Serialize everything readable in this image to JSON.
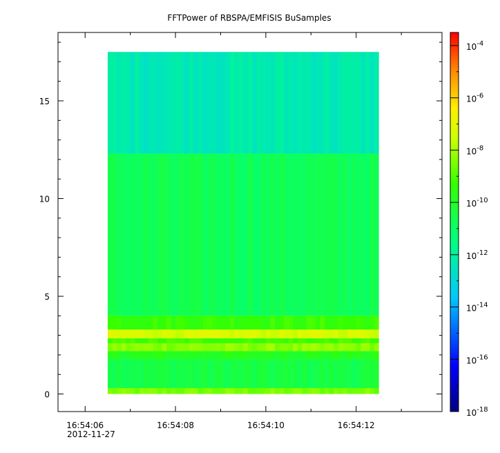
{
  "chart_data": {
    "type": "heatmap",
    "title": "FFTPower of RBSPA/EMFISIS  BuSamples",
    "xlabel": "",
    "ylabel": "",
    "x_range": [
      "16:54:05.4",
      "16:54:13.9"
    ],
    "data_x_range": [
      "16:54:06.5",
      "16:54:12.5"
    ],
    "x_ticks": [
      "16:54:06",
      "16:54:08",
      "16:54:10",
      "16:54:12"
    ],
    "x_date_label": "2012-11-27",
    "ylim": [
      -0.9,
      18.5
    ],
    "data_y_range": [
      0,
      17.5
    ],
    "y_ticks": [
      "0",
      "5",
      "10",
      "15"
    ],
    "colorbar": {
      "scale": "log",
      "range": [
        "1e-18",
        "1e-3.5"
      ],
      "ticks": [
        {
          "base": "10",
          "exp": "-4"
        },
        {
          "base": "10",
          "exp": "-6"
        },
        {
          "base": "10",
          "exp": "-8"
        },
        {
          "base": "10",
          "exp": "-10"
        },
        {
          "base": "10",
          "exp": "-12"
        },
        {
          "base": "10",
          "exp": "-14"
        },
        {
          "base": "10",
          "exp": "-16"
        },
        {
          "base": "10",
          "exp": "-18"
        }
      ],
      "colormap": "rainbow (dark blue → cyan → green → yellow → red)"
    },
    "bands": [
      {
        "y_from": 0,
        "y_to": 0.3,
        "log_power": -8.5
      },
      {
        "y_from": 0.3,
        "y_to": 1.8,
        "log_power": -10.5
      },
      {
        "y_from": 1.8,
        "y_to": 2.2,
        "log_power": -9.8
      },
      {
        "y_from": 2.2,
        "y_to": 2.6,
        "log_power": -8.3
      },
      {
        "y_from": 2.6,
        "y_to": 2.85,
        "log_power": -9.2
      },
      {
        "y_from": 2.85,
        "y_to": 3.3,
        "log_power": -7.3
      },
      {
        "y_from": 3.3,
        "y_to": 4.0,
        "log_power": -9.3
      },
      {
        "y_from": 4.0,
        "y_to": 12.3,
        "log_power": -10.8
      },
      {
        "y_from": 12.3,
        "y_to": 17.5,
        "log_power": -12.3
      }
    ]
  }
}
